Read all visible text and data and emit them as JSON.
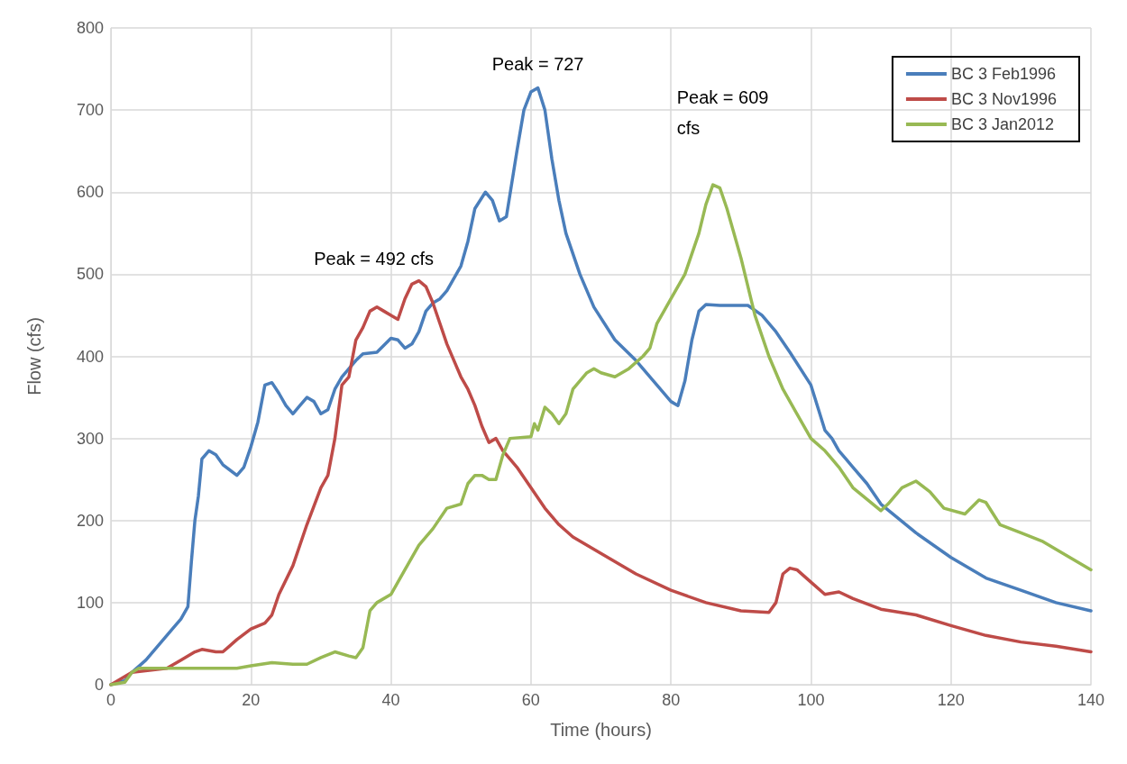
{
  "chart_data": {
    "type": "line",
    "xlabel": "Time (hours)",
    "ylabel": "Flow (cfs)",
    "xlim": [
      0,
      140
    ],
    "xticks": [
      0,
      20,
      40,
      60,
      80,
      100,
      120,
      140
    ],
    "ylim": [
      0,
      800
    ],
    "yticks": [
      0,
      100,
      200,
      300,
      400,
      500,
      600,
      700,
      800
    ],
    "grid": true,
    "legend": "top right",
    "marker": "none",
    "line_style": "solid",
    "annotations": [
      {
        "text": "Peak = 727",
        "x": 61,
        "y": 727
      },
      {
        "text": "Peak = 492 cfs",
        "x": 44,
        "y": 492
      },
      {
        "text": "Peak = 609 cfs",
        "x": 86,
        "y": 609
      }
    ],
    "series": [
      {
        "name": "BC 3 Feb1996",
        "color": "#4a7ebb",
        "x": [
          0,
          2,
          3,
          5,
          7,
          9,
          10,
          11,
          11.5,
          12,
          12.5,
          13,
          14,
          15,
          16,
          18,
          19,
          20,
          21,
          22,
          23,
          24,
          25,
          26,
          27,
          28,
          29,
          30,
          31,
          32,
          33,
          35,
          36,
          38,
          40,
          41,
          42,
          43,
          44,
          45,
          46,
          47,
          48,
          50,
          51,
          52,
          53.5,
          54.5,
          55.5,
          56.5,
          58,
          59,
          60,
          61,
          62,
          63,
          64,
          65,
          67,
          69,
          72,
          75,
          78,
          80,
          81,
          82,
          83,
          84,
          85,
          87,
          89,
          91,
          93,
          95,
          97,
          100,
          102,
          103,
          104,
          106,
          108,
          110,
          115,
          120,
          125,
          130,
          135,
          140
        ],
        "values": [
          0,
          5,
          15,
          30,
          50,
          70,
          80,
          95,
          150,
          200,
          230,
          275,
          285,
          280,
          268,
          255,
          265,
          290,
          320,
          365,
          368,
          355,
          340,
          330,
          340,
          350,
          345,
          330,
          335,
          360,
          375,
          395,
          403,
          405,
          422,
          420,
          410,
          415,
          430,
          455,
          465,
          470,
          480,
          510,
          540,
          580,
          600,
          590,
          565,
          570,
          650,
          700,
          722,
          727,
          700,
          640,
          590,
          550,
          500,
          460,
          420,
          395,
          365,
          345,
          340,
          370,
          420,
          455,
          463,
          462,
          462,
          462,
          450,
          430,
          405,
          365,
          310,
          300,
          285,
          265,
          245,
          220,
          185,
          155,
          130,
          115,
          100,
          90
        ]
      },
      {
        "name": "BC 3 Nov1996",
        "color": "#be4b48",
        "x": [
          0,
          3,
          8,
          10,
          12,
          13,
          15,
          16,
          18,
          20,
          22,
          23,
          24,
          26,
          28,
          30,
          31,
          32,
          33,
          34,
          35,
          36,
          37,
          38,
          39,
          40,
          41,
          42,
          43,
          44,
          45,
          46,
          47,
          48,
          50,
          51,
          52,
          53,
          54,
          55,
          56,
          58,
          60,
          62,
          64,
          66,
          70,
          75,
          80,
          85,
          90,
          94,
          95,
          96,
          97,
          98,
          100,
          102,
          104,
          106,
          110,
          115,
          120,
          125,
          130,
          135,
          140
        ],
        "values": [
          0,
          15,
          20,
          30,
          40,
          43,
          40,
          40,
          55,
          68,
          75,
          85,
          110,
          145,
          195,
          240,
          255,
          300,
          365,
          375,
          420,
          435,
          455,
          460,
          455,
          450,
          445,
          470,
          488,
          492,
          485,
          465,
          440,
          415,
          375,
          360,
          340,
          315,
          295,
          300,
          285,
          265,
          240,
          215,
          195,
          180,
          160,
          135,
          115,
          100,
          90,
          88,
          100,
          135,
          142,
          140,
          125,
          110,
          113,
          105,
          92,
          85,
          72,
          60,
          52,
          47,
          40
        ]
      },
      {
        "name": "BC 3 Jan2012",
        "color": "#98b954",
        "x": [
          0,
          2,
          3,
          4,
          10,
          18,
          20,
          23,
          26,
          28,
          30,
          32,
          34,
          35,
          36,
          37,
          38,
          40,
          42,
          44,
          46,
          48,
          50,
          51,
          52,
          53,
          54,
          55,
          56,
          57,
          60,
          60.5,
          61,
          62,
          63,
          64,
          65,
          66,
          68,
          69,
          70,
          72,
          74,
          76,
          77,
          78,
          80,
          82,
          84,
          85,
          86,
          87,
          88,
          90,
          92,
          94,
          96,
          98,
          100,
          102,
          104,
          106,
          110,
          111,
          113,
          115,
          117,
          119,
          122,
          124,
          125,
          127,
          130,
          133,
          136,
          140
        ],
        "values": [
          0,
          3,
          15,
          20,
          20,
          20,
          23,
          27,
          25,
          25,
          33,
          40,
          35,
          33,
          45,
          90,
          100,
          110,
          140,
          170,
          190,
          215,
          220,
          245,
          255,
          255,
          250,
          250,
          280,
          300,
          302,
          318,
          310,
          338,
          330,
          318,
          330,
          360,
          380,
          385,
          380,
          375,
          385,
          400,
          410,
          440,
          470,
          500,
          550,
          585,
          609,
          605,
          580,
          520,
          450,
          400,
          360,
          330,
          300,
          285,
          265,
          240,
          212,
          220,
          240,
          248,
          235,
          215,
          208,
          225,
          222,
          195,
          185,
          175,
          160,
          140
        ]
      }
    ]
  }
}
